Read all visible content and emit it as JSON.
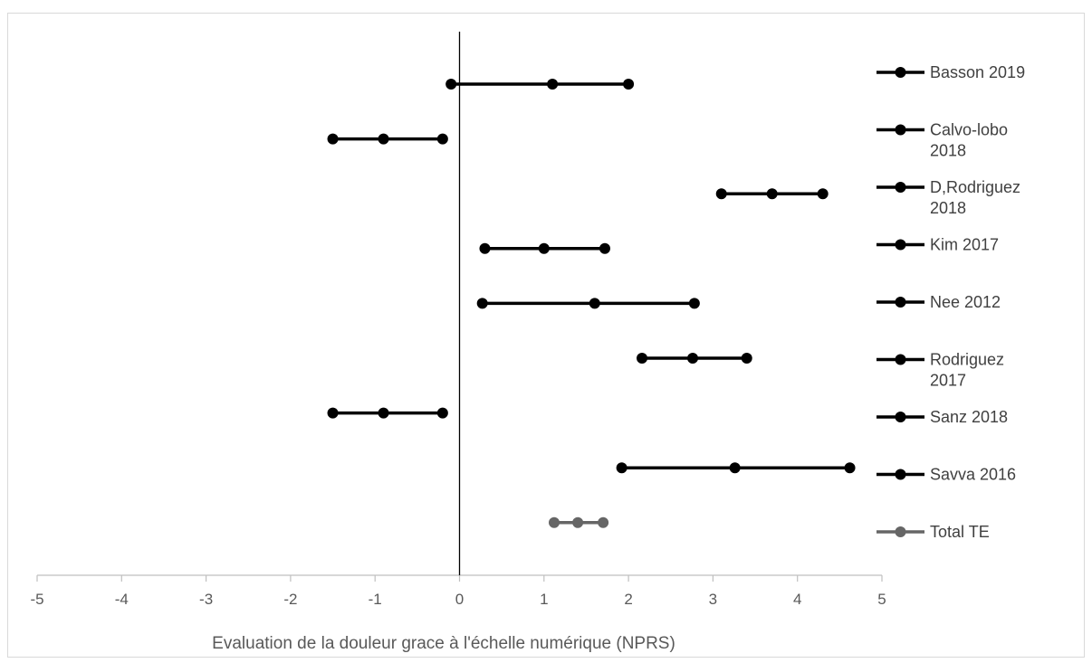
{
  "chart_data": {
    "type": "forest",
    "title": "",
    "xlabel": "Evaluation de la douleur grace à l'échelle numérique (NPRS)",
    "ylabel": "",
    "xlim": [
      -5,
      5
    ],
    "xticks": [
      "-5",
      "-4",
      "-3",
      "-2",
      "-1",
      "0",
      "1",
      "2",
      "3",
      "4",
      "5"
    ],
    "grid": false,
    "legend_position": "right",
    "series": [
      {
        "name": "Basson 2019",
        "name_lines": [
          "Basson 2019"
        ],
        "lower": -0.1,
        "estimate": 1.1,
        "upper": 2.0,
        "color": "#000000"
      },
      {
        "name": "Calvo-lobo 2018",
        "name_lines": [
          "Calvo-lobo",
          "2018"
        ],
        "lower": -1.5,
        "estimate": -0.9,
        "upper": -0.2,
        "color": "#000000"
      },
      {
        "name": "D,Rodriguez 2018",
        "name_lines": [
          "D,Rodriguez",
          "2018"
        ],
        "lower": 3.1,
        "estimate": 3.7,
        "upper": 4.3,
        "color": "#000000"
      },
      {
        "name": "Kim 2017",
        "name_lines": [
          "Kim 2017"
        ],
        "lower": 0.3,
        "estimate": 1.0,
        "upper": 1.72,
        "color": "#000000"
      },
      {
        "name": "Nee 2012",
        "name_lines": [
          "Nee 2012"
        ],
        "lower": 0.27,
        "estimate": 1.6,
        "upper": 2.78,
        "color": "#000000"
      },
      {
        "name": "Rodriguez 2017",
        "name_lines": [
          "Rodriguez",
          "2017"
        ],
        "lower": 2.16,
        "estimate": 2.76,
        "upper": 3.4,
        "color": "#000000"
      },
      {
        "name": "Sanz 2018",
        "name_lines": [
          "Sanz 2018"
        ],
        "lower": -1.5,
        "estimate": -0.9,
        "upper": -0.2,
        "color": "#000000"
      },
      {
        "name": "Savva 2016",
        "name_lines": [
          "Savva 2016"
        ],
        "lower": 1.92,
        "estimate": 3.26,
        "upper": 4.62,
        "color": "#000000"
      },
      {
        "name": "Total TE",
        "name_lines": [
          "Total TE"
        ],
        "lower": 1.12,
        "estimate": 1.4,
        "upper": 1.7,
        "color": "#666666"
      }
    ]
  }
}
